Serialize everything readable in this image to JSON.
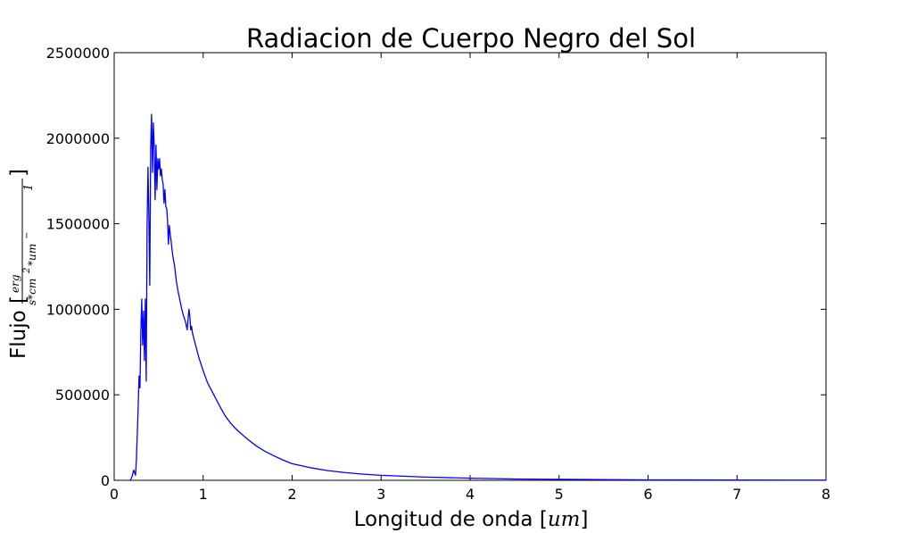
{
  "chart_data": {
    "type": "line",
    "title": "Radiacion de Cuerpo Negro del Sol",
    "xlabel_text": "Longitud de onda [",
    "xlabel_math": "um",
    "xlabel_close": "]",
    "ylabel_text": "Flujo [",
    "ylabel_numerator": "erg",
    "ylabel_denominator": "s*cm",
    "ylabel_exp1": "2",
    "ylabel_den_rest": "*um",
    "ylabel_exp2": "−",
    "ylabel_exp3": "1",
    "ylabel_close": "]",
    "xlim": [
      0,
      8
    ],
    "ylim": [
      0,
      2500000
    ],
    "x_ticks": [
      "0",
      "1",
      "2",
      "3",
      "4",
      "5",
      "6",
      "7",
      "8"
    ],
    "y_ticks": [
      "0",
      "500000",
      "1000000",
      "1500000",
      "2000000",
      "2500000"
    ],
    "grid": false,
    "line_color": "#0000ff",
    "series": [
      {
        "x": [
          0.18,
          0.2,
          0.22,
          0.24,
          0.25,
          0.26,
          0.27,
          0.28,
          0.29,
          0.3,
          0.31,
          0.32,
          0.33,
          0.34,
          0.35,
          0.36,
          0.37,
          0.38,
          0.39,
          0.4,
          0.41,
          0.42,
          0.43,
          0.44,
          0.45,
          0.46,
          0.47,
          0.48,
          0.49,
          0.5,
          0.51,
          0.52,
          0.53,
          0.54,
          0.55,
          0.56,
          0.57,
          0.58,
          0.59,
          0.6,
          0.61,
          0.62,
          0.63,
          0.64,
          0.65,
          0.66,
          0.68,
          0.7,
          0.72,
          0.74,
          0.76,
          0.78,
          0.8,
          0.82,
          0.84,
          0.85,
          0.86,
          0.87,
          0.88,
          0.9,
          0.95,
          1.0,
          1.05,
          1.1,
          1.15,
          1.2,
          1.25,
          1.3,
          1.35,
          1.4,
          1.5,
          1.6,
          1.7,
          1.8,
          1.9,
          2.0,
          2.2,
          2.4,
          2.6,
          2.8,
          3.0,
          3.5,
          4.0,
          4.5,
          5.0,
          6.0,
          7.0,
          8.0
        ],
        "values": [
          0,
          20000,
          60000,
          30000,
          120000,
          270000,
          430000,
          610000,
          540000,
          870000,
          1060000,
          790000,
          990000,
          700000,
          1060000,
          580000,
          1490000,
          1830000,
          1540000,
          1140000,
          1940000,
          2140000,
          1800000,
          2090000,
          1950000,
          1640000,
          1960000,
          1700000,
          1880000,
          1820000,
          1880000,
          1780000,
          1820000,
          1760000,
          1730000,
          1620000,
          1700000,
          1600000,
          1590000,
          1520000,
          1380000,
          1490000,
          1440000,
          1400000,
          1350000,
          1310000,
          1250000,
          1160000,
          1100000,
          1050000,
          1000000,
          960000,
          930000,
          880000,
          1000000,
          960000,
          880000,
          900000,
          860000,
          820000,
          720000,
          640000,
          570000,
          520000,
          470000,
          420000,
          375000,
          340000,
          310000,
          285000,
          240000,
          200000,
          168000,
          142000,
          118000,
          97000,
          74000,
          57000,
          45000,
          36000,
          29000,
          19000,
          12500,
          8000,
          5500,
          2800,
          1500,
          800
        ]
      }
    ]
  }
}
